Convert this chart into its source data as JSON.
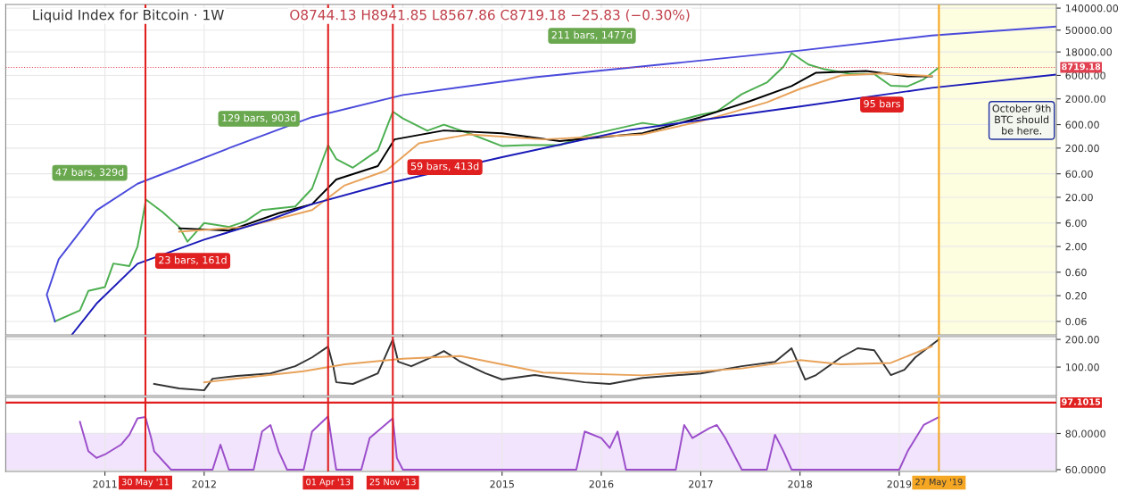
{
  "chart_data": [
    {
      "type": "line",
      "title": "Liquid Index for Bitcoin · 1W",
      "subtitle": "O8744.13 H8941.85 L8567.86 C8719.18 −25.83 (−0.30%)",
      "log": "y",
      "grid": true,
      "tick_labels": "y",
      "xlim": [
        "2010-01-01",
        "2020-08-01"
      ],
      "ylim": [
        0.032,
        166000
      ],
      "yticks": [
        {
          "value": 0.06,
          "label": "0.06"
        },
        {
          "value": 0.2,
          "label": "0.20"
        },
        {
          "value": 0.6,
          "label": "0.60"
        },
        {
          "value": 2,
          "label": "2.00"
        },
        {
          "value": 6,
          "label": "6.00"
        },
        {
          "value": 20,
          "label": "20.00"
        },
        {
          "value": 60,
          "label": "60.00"
        },
        {
          "value": 200,
          "label": "200.00"
        },
        {
          "value": 600,
          "label": "600.00"
        },
        {
          "value": 2000,
          "label": "2000.00"
        },
        {
          "value": 6000,
          "label": "6000.00"
        },
        {
          "value": 18000,
          "label": "18000.00"
        },
        {
          "value": 50000,
          "label": "50000.00"
        },
        {
          "value": 140000,
          "label": "140000.00"
        }
      ],
      "series": [
        {
          "color": "#4caf50",
          "x": [
            "2010-07",
            "2010-10",
            "2010-11",
            "2011-01",
            "2011-02",
            "2011-04",
            "2011-05",
            "2011-06",
            "2011-08",
            "2011-10",
            "2011-11",
            "2012-01",
            "2012-04",
            "2012-06",
            "2012-08",
            "2012-10",
            "2012-12",
            "2013-02",
            "2013-04",
            "2013-05",
            "2013-07",
            "2013-10",
            "2013-11-25",
            "2014-01",
            "2014-04",
            "2014-06",
            "2014-09",
            "2015-01",
            "2015-04",
            "2015-08",
            "2015-11",
            "2016-01",
            "2016-06",
            "2016-08",
            "2017-01",
            "2017-03",
            "2017-06",
            "2017-09",
            "2017-11",
            "2017-12",
            "2018-02",
            "2018-04",
            "2018-07",
            "2018-10",
            "2018-12",
            "2019-02",
            "2019-04",
            "2019-05-27"
          ],
          "values": [
            0.06,
            0.1,
            0.25,
            0.3,
            0.9,
            0.8,
            2,
            18,
            10,
            5,
            2.5,
            6,
            5,
            6.5,
            11,
            12,
            13,
            30,
            230,
            120,
            80,
            180,
            1100,
            800,
            450,
            600,
            400,
            220,
            230,
            230,
            350,
            420,
            650,
            580,
            950,
            1100,
            2500,
            4300,
            9000,
            17000,
            10000,
            8000,
            6500,
            6400,
            3700,
            3600,
            5000,
            8719.18
          ]
        },
        {
          "color": "#000000",
          "x": [
            "2011-10",
            "2012-04",
            "2012-10",
            "2013-02",
            "2013-05",
            "2013-10",
            "2013-12",
            "2014-06",
            "2015-01",
            "2015-08",
            "2016-06",
            "2017-01",
            "2017-07",
            "2017-12",
            "2018-03",
            "2018-09",
            "2019-02",
            "2019-05"
          ],
          "values": [
            4.7,
            4.2,
            9.5,
            14.5,
            46,
            86,
            300,
            456,
            400,
            277,
            400,
            851,
            1800,
            3640,
            6800,
            7400,
            5750,
            5750
          ]
        },
        {
          "color": "#e8a25a",
          "x": [
            "2011-10",
            "2012-06",
            "2013-02",
            "2013-06",
            "2013-11",
            "2014-03",
            "2014-09",
            "2015-06",
            "2016-06",
            "2017-01",
            "2017-09",
            "2018-01",
            "2018-06",
            "2018-11",
            "2019-05"
          ],
          "values": [
            4,
            5,
            11,
            35,
            70,
            250,
            380,
            300,
            380,
            700,
            1700,
            3200,
            6000,
            6600,
            5800
          ]
        },
        {
          "color": "#4a4adc",
          "x": [
            "2010-07",
            "2010-06",
            "2010-07-15",
            "2010-12",
            "2011-05",
            "2012-04",
            "2013-02",
            "2014-01",
            "2015-05",
            "2016-09",
            "2018-01",
            "2019-05",
            "2020-08"
          ],
          "values": [
            0.06,
            0.21,
            1.1,
            10.8,
            37.7,
            199,
            851,
            2400,
            5520,
            10300,
            19200,
            38900,
            59000
          ]
        },
        {
          "color": "#1a1ab8",
          "x": [
            "2010-09",
            "2010-12",
            "2011-05",
            "2012-01",
            "2012-09",
            "2013-02",
            "2013-11",
            "2015-01",
            "2016-04",
            "2018-01",
            "2019-05",
            "2020-08"
          ],
          "values": [
            0.032,
            0.138,
            0.89,
            2.75,
            7.1,
            14.5,
            37.7,
            131,
            456,
            1400,
            3350,
            6250
          ]
        }
      ],
      "ref_lines": [
        {
          "axis": "y",
          "value": 8719.18,
          "label": "8719.18",
          "color": "#e04050",
          "line_style": "dotted"
        },
        {
          "axis": "x",
          "value": "2011-05-30",
          "color": "#e02020"
        },
        {
          "axis": "x",
          "value": "2013-04-01",
          "color": "#e02020"
        },
        {
          "axis": "x",
          "value": "2013-11-25",
          "color": "#e02020"
        },
        {
          "axis": "x",
          "value": "2019-05-27",
          "color": "#f5a623"
        }
      ],
      "bands": [
        {
          "axis": "x",
          "from": "2019-05-27",
          "to": "2020-08-01",
          "color": "#fdfde0"
        }
      ],
      "annotations": [
        "47 bars, 329d",
        "23 bars, 161d",
        "129 bars, 903d",
        "59 bars, 413d",
        "211 bars, 1477d",
        "95 bars",
        "October 9th\nBTC should\nbe here."
      ]
    },
    {
      "type": "line",
      "grid": true,
      "tick_labels": "y",
      "xlim": [
        "2010-01-01",
        "2020-08-01"
      ],
      "ylim": [
        -3,
        210
      ],
      "yticks": [
        {
          "value": 100,
          "label": "100.00"
        },
        {
          "value": 200,
          "label": "200.00"
        }
      ],
      "series": [
        {
          "color": "#333333",
          "x": [
            "2011-07",
            "2011-10",
            "2012-01",
            "2012-02",
            "2012-05",
            "2012-09",
            "2012-12",
            "2013-02",
            "2013-04",
            "2013-04-20",
            "2013-05",
            "2013-07",
            "2013-10",
            "2013-11-25",
            "2013-12-15",
            "2014-02",
            "2014-05",
            "2014-06",
            "2014-08",
            "2014-11",
            "2015-01",
            "2015-05",
            "2015-11",
            "2016-02",
            "2016-06",
            "2017-01",
            "2017-06",
            "2017-10",
            "2017-12",
            "2018-01-20",
            "2018-03",
            "2018-06",
            "2018-08",
            "2018-10",
            "2018-12",
            "2019-01-20",
            "2019-03",
            "2019-05-27"
          ],
          "values": [
            39,
            23,
            16,
            58,
            68,
            77,
            103,
            135,
            174,
            103,
            45,
            39,
            77,
            200,
            119,
            103,
            142,
            158,
            119,
            77,
            55,
            71,
            45,
            39,
            61,
            77,
            103,
            119,
            168,
            55,
            71,
            135,
            168,
            161,
            71,
            90,
            135,
            200
          ]
        },
        {
          "color": "#e8a25a",
          "x": [
            "2012-01",
            "2013-01",
            "2013-06",
            "2014-01",
            "2014-08",
            "2015-06",
            "2016-06",
            "2017-06",
            "2018-01",
            "2018-06",
            "2018-12",
            "2019-05"
          ],
          "values": [
            45,
            85,
            110,
            130,
            140,
            80,
            70,
            95,
            125,
            110,
            115,
            175
          ]
        }
      ],
      "ref_lines": [
        {
          "axis": "x",
          "value": "2011-05-30",
          "color": "#e02020"
        },
        {
          "axis": "x",
          "value": "2013-04-01",
          "color": "#e02020"
        },
        {
          "axis": "x",
          "value": "2013-11-25",
          "color": "#e02020"
        },
        {
          "axis": "x",
          "value": "2019-05-27",
          "color": "#f5a623"
        }
      ]
    },
    {
      "type": "line",
      "grid": true,
      "xlim": [
        "2010-01-01",
        "2020-08-01"
      ],
      "ylim": [
        59,
        100
      ],
      "xticks": [
        {
          "value": "2011-01-01",
          "label": "2011"
        },
        {
          "value": "2012-01-01",
          "label": "2012"
        },
        {
          "value": "2015-01-01",
          "label": "2015"
        },
        {
          "value": "2016-01-01",
          "label": "2016"
        },
        {
          "value": "2017-01-01",
          "label": "2017"
        },
        {
          "value": "2018-01-01",
          "label": "2018"
        },
        {
          "value": "2019-01-01",
          "label": "2019"
        }
      ],
      "yticks": [
        {
          "value": 60,
          "label": "60.0000"
        },
        {
          "value": 80,
          "label": "80.0000"
        }
      ],
      "series": [
        {
          "color": "#9b4dca",
          "x": [
            "2010-10",
            "2010-11",
            "2010-12",
            "2011-01",
            "2011-03",
            "2011-04",
            "2011-05",
            "2011-05-30",
            "2011-06-20",
            "2011-07",
            "2011-09",
            "2012-02",
            "2012-03",
            "2012-04",
            "2012-07",
            "2012-08",
            "2012-09",
            "2012-10",
            "2012-11",
            "2013-01",
            "2013-02",
            "2013-04",
            "2013-04-20",
            "2013-05",
            "2013-08",
            "2013-09",
            "2013-11-25",
            "2013-12-10",
            "2014-01",
            "2015-10",
            "2015-11",
            "2016-01",
            "2016-02",
            "2016-03",
            "2016-04",
            "2016-10",
            "2016-11",
            "2016-12",
            "2017-02",
            "2017-03",
            "2017-04",
            "2017-06",
            "2017-09",
            "2017-10",
            "2017-11",
            "2017-12",
            "2019-01",
            "2019-02",
            "2019-04",
            "2019-05-27"
          ],
          "values": [
            86.5,
            70.2,
            66.5,
            68.4,
            73.8,
            79.3,
            88.4,
            89.1,
            77.5,
            70.2,
            60,
            60,
            73.8,
            60,
            60,
            81.1,
            84.7,
            70.2,
            60,
            60,
            81.1,
            89.5,
            70.2,
            60,
            60,
            77.5,
            88.4,
            66.5,
            60,
            60,
            81.1,
            77.5,
            72,
            81.1,
            60,
            60,
            84.7,
            77.5,
            82.9,
            84.7,
            77.5,
            60,
            60,
            79.3,
            70.2,
            60,
            60,
            70.2,
            84.7,
            89.1
          ]
        }
      ],
      "ref_lines": [
        {
          "axis": "y",
          "value": 97.1015,
          "label": "97.1015",
          "color": "#e02020"
        },
        {
          "axis": "x",
          "value": "2011-05-30",
          "label": "30 May '11",
          "color": "#e02020"
        },
        {
          "axis": "x",
          "value": "2013-04-01",
          "label": "01 Apr '13",
          "color": "#e02020"
        },
        {
          "axis": "x",
          "value": "2013-11-25",
          "label": "25 Nov '13",
          "color": "#e02020"
        },
        {
          "axis": "x",
          "value": "2019-05-27",
          "label": "27 May '19",
          "color": "#f5a623"
        }
      ],
      "bands": [
        {
          "axis": "y",
          "from": 60,
          "to": 80,
          "color": "#f1e4fc"
        }
      ]
    }
  ]
}
